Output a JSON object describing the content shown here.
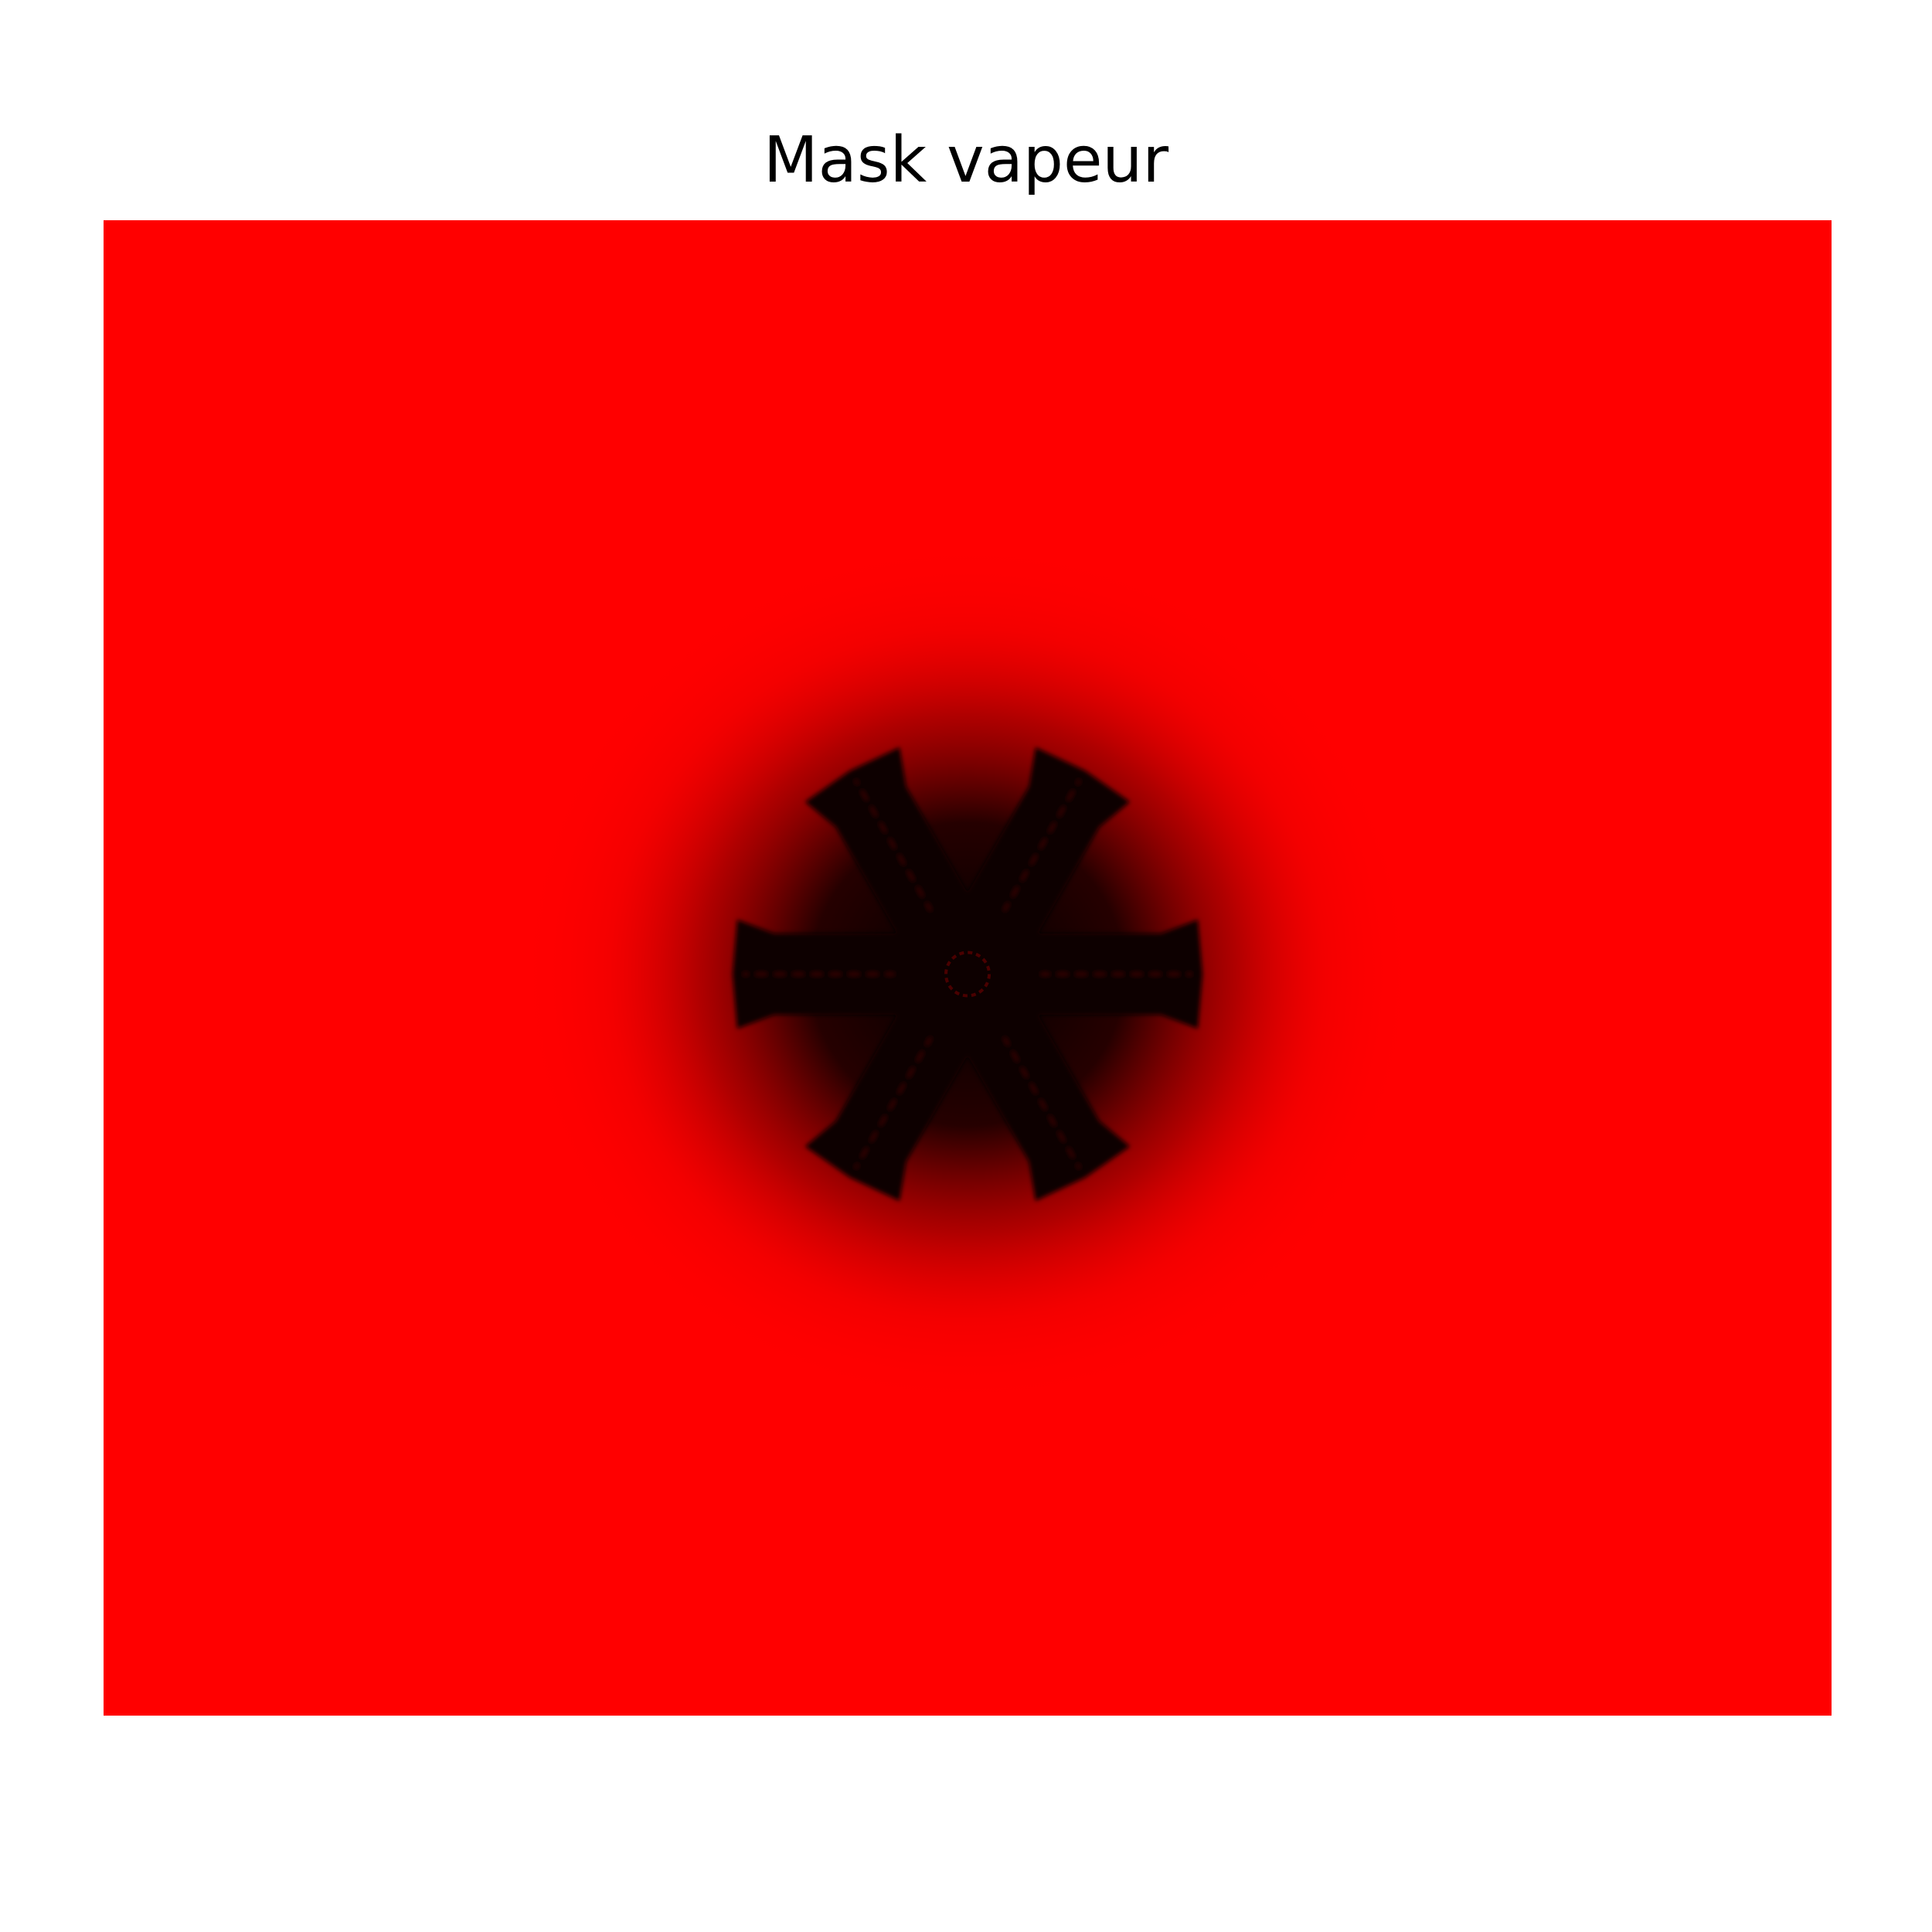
{
  "chart_data": {
    "type": "heatmap",
    "title": "Mask vapeur",
    "xlabel": "",
    "ylabel": "",
    "axes_visible": false,
    "grid": false,
    "colors": {
      "background": "#ffffff",
      "high": "#ff0000",
      "low": "#000000",
      "core": "#0a0000"
    },
    "field": {
      "description_of_pattern": "",
      "uniform_value": 1,
      "crystal_value": 0,
      "crystal_arms": 6,
      "arm_angles_deg": [
        0,
        60,
        120,
        180,
        240,
        300
      ]
    }
  }
}
